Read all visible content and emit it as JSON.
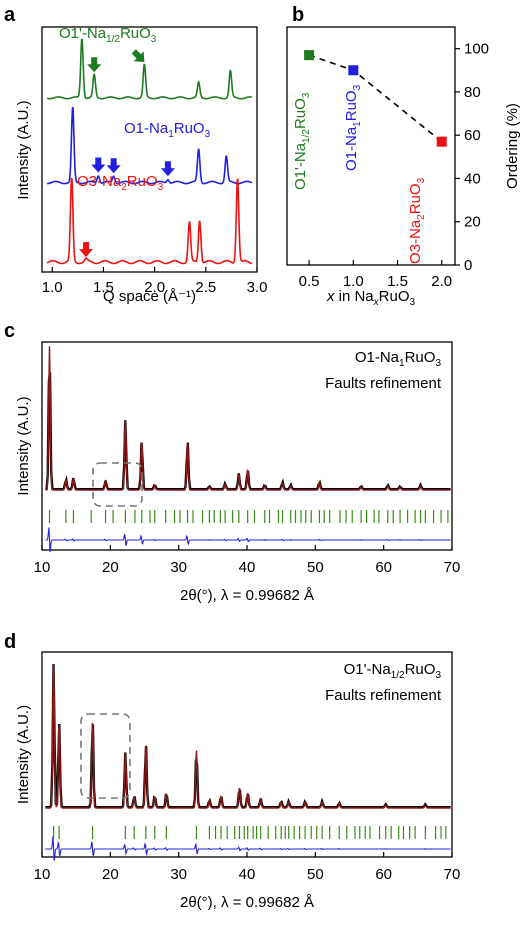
{
  "colors": {
    "green": "#1e7a1e",
    "blue": "#2020e0",
    "red": "#ee1111",
    "black": "#000000",
    "fit": "#8b1a1a",
    "tick": "#3a8a1a",
    "diff": "#2222dd",
    "box": "#777777"
  },
  "panels": [
    {
      "letter": "a",
      "chart_data": {
        "type": "line",
        "xlabel": "Q space (Å⁻¹)",
        "ylabel": "Intensity (A.U.)",
        "xlim": [
          0.9,
          3.0
        ],
        "xticks": [
          "1.0",
          "1.5",
          "2.0",
          "2.5",
          "3.0"
        ],
        "series": [
          {
            "name": "O1'-Na1/2RuO3",
            "label_main": "O1'-Na",
            "label_sub": "1/2",
            "label_after": "RuO",
            "label_sub2": "3",
            "color": "green",
            "peaks": [
              [
                1.29,
                1.0
              ],
              [
                1.41,
                0.38
              ],
              [
                1.9,
                0.55
              ],
              [
                2.43,
                0.25
              ],
              [
                2.74,
                0.45
              ]
            ],
            "arrows": [
              1.41,
              1.9
            ]
          },
          {
            "name": "O1-Na1RuO3",
            "label_main": "O1-Na",
            "label_sub": "1",
            "label_after": "RuO",
            "label_sub2": "3",
            "color": "blue",
            "peaks": [
              [
                1.2,
                1.0
              ],
              [
                1.45,
                0.1
              ],
              [
                1.6,
                0.09
              ],
              [
                2.13,
                0.05
              ],
              [
                2.43,
                0.45
              ],
              [
                2.7,
                0.35
              ]
            ],
            "arrows": [
              1.45,
              1.6,
              2.13
            ]
          },
          {
            "name": "O3-Na2RuO3",
            "label_main": "O3-Na",
            "label_sub": "2",
            "label_after": "RuO",
            "label_sub2": "3",
            "color": "red",
            "peaks": [
              [
                1.19,
                0.88
              ],
              [
                1.33,
                0.03
              ],
              [
                2.34,
                0.42
              ],
              [
                2.44,
                0.45
              ],
              [
                2.81,
                0.9
              ]
            ],
            "arrows": [
              1.33
            ]
          }
        ]
      }
    },
    {
      "letter": "b",
      "chart_data": {
        "type": "scatter",
        "xlabel_pre": "x",
        "xlabel_mid": " in Na",
        "xlabel_sub": "x",
        "xlabel_post": "RuO",
        "xlabel_sub2": "3",
        "ylabel": "Ordering (%)",
        "xlim": [
          0.25,
          2.15
        ],
        "ylim": [
          0,
          110
        ],
        "xticks": [
          "0.5",
          "1.0",
          "1.5",
          "2.0"
        ],
        "yticks": [
          "0",
          "20",
          "40",
          "60",
          "80",
          "100"
        ],
        "points": [
          {
            "x": 0.5,
            "y": 97,
            "color": "green",
            "label_main": "O1'-Na",
            "label_sub": "1/2",
            "label_after": "RuO",
            "label_sub2": "3"
          },
          {
            "x": 1.0,
            "y": 90,
            "color": "blue",
            "label_main": "O1-Na",
            "label_sub": "1",
            "label_after": "RuO",
            "label_sub2": "3"
          },
          {
            "x": 2.0,
            "y": 57,
            "color": "red",
            "label_main": "O3-Na",
            "label_sub": "2",
            "label_after": "RuO",
            "label_sub2": "3"
          }
        ]
      }
    },
    {
      "letter": "c",
      "chart_data": {
        "type": "line",
        "title_main": "O1-Na",
        "title_sub": "1",
        "title_after": "RuO",
        "title_sub2": "3",
        "subtitle": "Faults refinement",
        "ylabel": "Intensity (A.U.)",
        "xlabel": "2θ(°), λ = 0.99682 Å",
        "xlim": [
          10,
          70
        ],
        "xticks": [
          "10",
          "20",
          "30",
          "40",
          "50",
          "60",
          "70"
        ],
        "peaks": [
          [
            11.1,
            1.0
          ],
          [
            13.5,
            0.07
          ],
          [
            14.6,
            0.08
          ],
          [
            19.3,
            0.06
          ],
          [
            22.2,
            0.48
          ],
          [
            24.6,
            0.34
          ],
          [
            26.5,
            0.03
          ],
          [
            31.3,
            0.34
          ],
          [
            34.5,
            0.02
          ],
          [
            36.8,
            0.04
          ],
          [
            38.8,
            0.11
          ],
          [
            40.1,
            0.14
          ],
          [
            42.6,
            0.03
          ],
          [
            45.2,
            0.05
          ],
          [
            46.4,
            0.03
          ],
          [
            50.6,
            0.05
          ],
          [
            56.7,
            0.02
          ],
          [
            60.6,
            0.03
          ],
          [
            62.4,
            0.02
          ],
          [
            65.4,
            0.03
          ]
        ],
        "ticks": [
          11.1,
          13.5,
          14.6,
          17.2,
          19.3,
          20.4,
          22.2,
          23.6,
          24.6,
          25.8,
          26.5,
          28.1,
          29.4,
          30.2,
          31.3,
          32.1,
          33.5,
          34.5,
          35.2,
          36.1,
          36.8,
          37.9,
          38.8,
          40.1,
          41.1,
          42.6,
          43.3,
          44.6,
          45.2,
          46.4,
          47.1,
          47.9,
          48.6,
          49.4,
          50.6,
          51.3,
          52.1,
          53.6,
          54.5,
          55.4,
          56.7,
          57.5,
          58.6,
          59.3,
          60.6,
          61.4,
          62.4,
          63.5,
          64.6,
          65.4,
          66.1,
          67.3,
          68.4,
          69.4
        ]
      }
    },
    {
      "letter": "d",
      "chart_data": {
        "type": "line",
        "title_main": "O1'-Na",
        "title_sub": "1/2",
        "title_after": "RuO",
        "title_sub2": "3",
        "subtitle": "Faults refinement",
        "ylabel": "Intensity (A.U.)",
        "xlabel": "2θ(°), λ = 0.99682 Å",
        "xlim": [
          10,
          70
        ],
        "xticks": [
          "10",
          "20",
          "30",
          "40",
          "50",
          "60",
          "70"
        ],
        "peaks": [
          [
            11.7,
            1.0
          ],
          [
            12.5,
            0.6
          ],
          [
            17.4,
            0.62
          ],
          [
            22.2,
            0.38
          ],
          [
            23.5,
            0.08
          ],
          [
            25.2,
            0.45
          ],
          [
            26.5,
            0.08
          ],
          [
            28.2,
            0.1
          ],
          [
            32.6,
            0.4
          ],
          [
            34.5,
            0.05
          ],
          [
            36.2,
            0.08
          ],
          [
            38.9,
            0.14
          ],
          [
            40.1,
            0.1
          ],
          [
            42.0,
            0.06
          ],
          [
            45.0,
            0.04
          ],
          [
            46.1,
            0.04
          ],
          [
            48.5,
            0.04
          ],
          [
            51.0,
            0.04
          ],
          [
            53.5,
            0.03
          ],
          [
            60.3,
            0.02
          ],
          [
            66.1,
            0.02
          ]
        ],
        "ticks": [
          11.7,
          12.5,
          17.4,
          22.2,
          23.5,
          25.2,
          26.5,
          28.2,
          32.6,
          34.5,
          35.4,
          36.2,
          37.1,
          38.2,
          38.9,
          39.6,
          40.1,
          40.9,
          41.4,
          42.0,
          43.1,
          44.2,
          45.0,
          45.6,
          46.1,
          46.9,
          47.7,
          48.5,
          49.4,
          50.2,
          51.0,
          52.1,
          53.5,
          54.6,
          55.8,
          56.5,
          57.3,
          58.0,
          59.4,
          60.3,
          61.1,
          62.2,
          62.9,
          63.8,
          64.6,
          66.1,
          67.6,
          68.4,
          69.1
        ]
      }
    }
  ]
}
